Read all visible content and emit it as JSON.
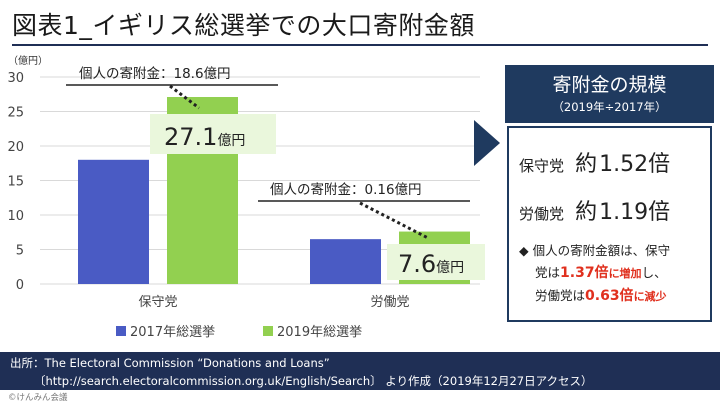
{
  "title": "図表1_イギリス総選挙での大口寄附金額",
  "chart_data": {
    "type": "bar",
    "y_unit": "（億円）",
    "ylim": [
      0,
      30
    ],
    "yticks": [
      "0",
      "5",
      "10",
      "15",
      "20",
      "25",
      "30"
    ],
    "categories": [
      "保守党",
      "労働党"
    ],
    "series": [
      {
        "name": "2017年総選挙",
        "values": [
          18.0,
          6.5
        ],
        "color": "#4a5bc4"
      },
      {
        "name": "2019年総選挙",
        "values": [
          27.1,
          7.6
        ],
        "color": "#92d050"
      }
    ],
    "value_labels": [
      {
        "number": "27.1",
        "unit": "億円"
      },
      {
        "number": "7.6",
        "unit": "億円"
      }
    ],
    "callouts": [
      {
        "text": "個人の寄附金：18.6億円"
      },
      {
        "text": "個人の寄附金：0.16億円"
      }
    ],
    "legend_position": "bottom"
  },
  "panel": {
    "title": "寄附金の規模",
    "subtitle": "（2019年÷2017年）",
    "rows": [
      {
        "party": "保守党",
        "prefix": "約",
        "value": "1.52倍"
      },
      {
        "party": "労働党",
        "prefix": "約",
        "value": "1.19倍"
      }
    ],
    "note": {
      "bullet": "◆",
      "line1": "個人の寄附金額は、保守",
      "line2_a": "党は",
      "line2_b": "1.37倍",
      "line2_c": "に増加",
      "line2_d": "し、",
      "line3_a": "労働党は",
      "line3_b": "0.63倍",
      "line3_c": "に減少"
    }
  },
  "source": {
    "line1": "出所：The Electoral Commission “Donations and Loans”",
    "line2": "〔http://search.electoralcommission.org.uk/English/Search〕 より作成（2019年12月27日アクセス）"
  },
  "copyright": "©けんみん会議",
  "colors": {
    "navy": "#1f2f55",
    "panel_navy": "#1f3a5f",
    "accent_red": "#e0301e"
  }
}
